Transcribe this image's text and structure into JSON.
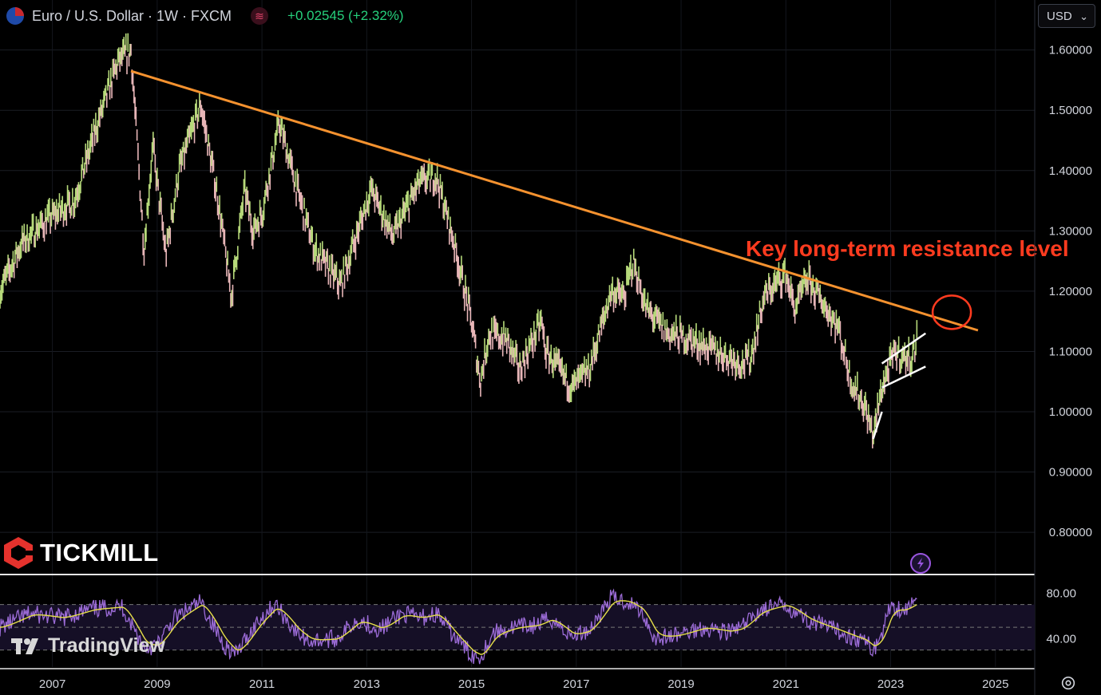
{
  "header": {
    "symbol_title": "Euro / U.S. Dollar · 1W · FXCM",
    "change_text": "+0.02545 (+2.32%)",
    "currency_select": "USD",
    "currency_chevron": "⌄"
  },
  "annotation": {
    "resistance_label": "Key long-term resistance level",
    "resistance_color": "#ff3b1f",
    "trendline_color": "#f5922f",
    "channel_color": "#ffffff"
  },
  "branding": {
    "tickmill": "TICKMILL",
    "tradingview": "TradingView"
  },
  "icons": [
    "eu-flag-icon",
    "indicator-wave-icon",
    "tickmill-logo-icon",
    "tradingview-logo-icon",
    "lightning-icon",
    "settings-gear-icon",
    "chevron-down-icon"
  ],
  "chart_data": {
    "type": "candlestick",
    "title": "Euro / U.S. Dollar · 1W · FXCM",
    "price_axis": {
      "ticks": [
        "1.60000",
        "1.50000",
        "1.40000",
        "1.30000",
        "1.20000",
        "1.10000",
        "1.00000",
        "0.90000",
        "0.80000"
      ],
      "ylim": [
        0.73,
        1.63
      ]
    },
    "time_axis": {
      "ticks": [
        "2007",
        "2009",
        "2011",
        "2013",
        "2015",
        "2017",
        "2019",
        "2021",
        "2023",
        "2025"
      ],
      "xlim": [
        "2006-01",
        "2025-10"
      ]
    },
    "price_series": {
      "x": [
        "2006-01",
        "2006-06",
        "2006-12",
        "2007-06",
        "2007-11",
        "2008-04",
        "2008-07",
        "2008-10",
        "2008-12",
        "2009-03",
        "2009-06",
        "2009-11",
        "2010-03",
        "2010-06",
        "2010-09",
        "2010-11",
        "2011-01",
        "2011-05",
        "2011-09",
        "2011-11",
        "2012-01",
        "2012-07",
        "2012-11",
        "2013-02",
        "2013-07",
        "2014-01",
        "2014-05",
        "2014-09",
        "2015-01",
        "2015-03",
        "2015-05",
        "2015-09",
        "2015-12",
        "2016-05",
        "2016-06",
        "2016-12",
        "2017-04",
        "2017-09",
        "2017-12",
        "2018-02",
        "2018-05",
        "2018-10",
        "2019-03",
        "2019-09",
        "2020-03",
        "2020-05",
        "2020-08",
        "2021-01",
        "2021-03",
        "2021-06",
        "2022-01",
        "2022-04",
        "2022-07",
        "2022-09",
        "2022-11",
        "2023-02",
        "2023-04",
        "2023-06",
        "2023-07"
      ],
      "y": [
        1.2,
        1.28,
        1.32,
        1.35,
        1.47,
        1.58,
        1.6,
        1.27,
        1.44,
        1.26,
        1.4,
        1.51,
        1.35,
        1.19,
        1.37,
        1.3,
        1.33,
        1.48,
        1.37,
        1.32,
        1.27,
        1.21,
        1.3,
        1.37,
        1.29,
        1.38,
        1.39,
        1.28,
        1.15,
        1.05,
        1.13,
        1.12,
        1.07,
        1.15,
        1.1,
        1.04,
        1.07,
        1.2,
        1.19,
        1.25,
        1.17,
        1.13,
        1.12,
        1.1,
        1.08,
        1.09,
        1.19,
        1.23,
        1.17,
        1.22,
        1.14,
        1.05,
        1.01,
        0.96,
        1.04,
        1.1,
        1.09,
        1.09,
        1.12
      ]
    },
    "trendline": {
      "from": [
        "2008-07",
        1.565
      ],
      "to": [
        "2024-09",
        1.135
      ]
    },
    "resistance_circle": {
      "at": [
        "2024-03",
        1.165
      ]
    },
    "channel": {
      "upper": [
        [
          "2022-11",
          1.08
        ],
        [
          "2023-09",
          1.13
        ]
      ],
      "lower": [
        [
          "2022-11",
          1.04
        ],
        [
          "2023-09",
          1.075
        ]
      ]
    },
    "rsi": {
      "ticks": [
        "80.00",
        "40.00"
      ],
      "ylim": [
        15,
        95
      ],
      "band": [
        30,
        70
      ],
      "x": [
        "2006-01",
        "2006-08",
        "2007-03",
        "2007-10",
        "2008-05",
        "2008-10",
        "2009-01",
        "2009-05",
        "2009-11",
        "2010-04",
        "2010-07",
        "2010-12",
        "2011-04",
        "2011-09",
        "2011-12",
        "2012-06",
        "2012-11",
        "2013-04",
        "2013-09",
        "2014-01",
        "2014-05",
        "2014-09",
        "2015-01",
        "2015-03",
        "2015-06",
        "2015-11",
        "2016-04",
        "2016-07",
        "2016-12",
        "2017-04",
        "2017-09",
        "2018-01",
        "2018-04",
        "2018-07",
        "2018-12",
        "2019-06",
        "2019-12",
        "2020-03",
        "2020-07",
        "2021-01",
        "2021-06",
        "2021-12",
        "2022-04",
        "2022-07",
        "2022-09",
        "2022-11",
        "2023-01",
        "2023-04",
        "2023-07"
      ],
      "y": [
        50,
        62,
        58,
        66,
        68,
        32,
        34,
        58,
        72,
        36,
        26,
        55,
        70,
        45,
        38,
        40,
        57,
        48,
        62,
        58,
        62,
        42,
        26,
        24,
        45,
        50,
        52,
        58,
        42,
        48,
        76,
        72,
        64,
        40,
        43,
        50,
        46,
        50,
        65,
        70,
        56,
        48,
        42,
        38,
        30,
        44,
        70,
        65,
        73
      ]
    }
  }
}
